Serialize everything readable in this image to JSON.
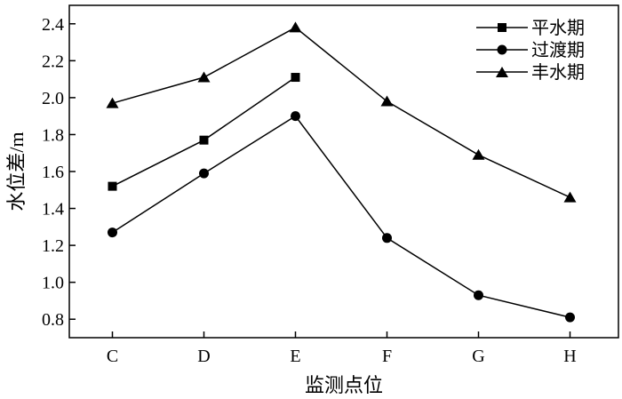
{
  "chart_data": {
    "type": "line",
    "title": "",
    "xlabel": "监测点位",
    "ylabel": "水位差/m",
    "categories": [
      "C",
      "D",
      "E",
      "F",
      "G",
      "H"
    ],
    "ylim": [
      0.7,
      2.5
    ],
    "yticks": [
      "0.8",
      "1.0",
      "1.2",
      "1.4",
      "1.6",
      "1.8",
      "2.0",
      "2.2",
      "2.4"
    ],
    "grid": false,
    "legend_position": "top-right",
    "series": [
      {
        "name": "平水期",
        "marker": "square",
        "values": [
          1.52,
          1.77,
          2.11,
          null,
          null,
          null
        ]
      },
      {
        "name": "过渡期",
        "marker": "circle",
        "values": [
          1.27,
          1.59,
          1.9,
          1.24,
          0.93,
          0.81
        ]
      },
      {
        "name": "丰水期",
        "marker": "triangle",
        "values": [
          1.97,
          2.11,
          2.38,
          1.98,
          1.69,
          1.46
        ]
      }
    ]
  }
}
